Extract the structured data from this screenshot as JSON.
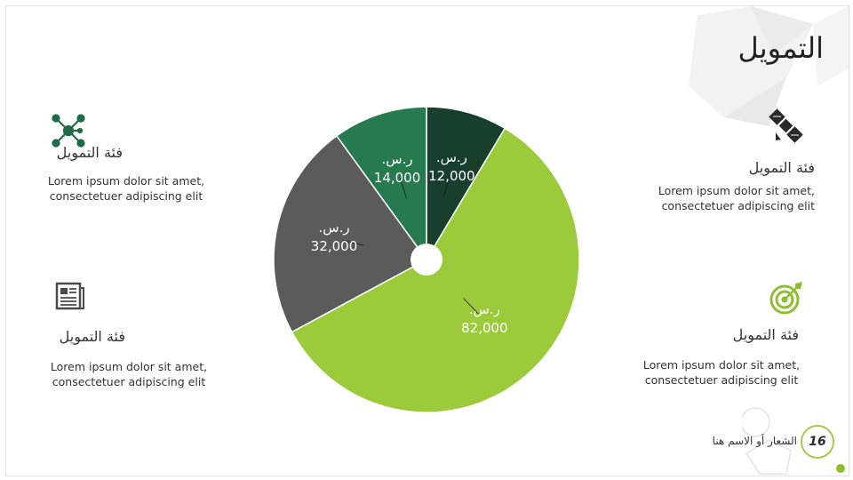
{
  "slide": {
    "title": "التمويل",
    "colors": {
      "dark_green": "#183f2b",
      "mid_green": "#27794f",
      "gray": "#5b5b5b",
      "light_green": "#9bcb3b",
      "light_gray_deco": "#f0f0f0",
      "accent_ring": "#a8c94e"
    },
    "blocks": {
      "top_left": {
        "icon": "network-icon",
        "heading": "فئة التمويل",
        "body_line1": "Lorem ipsum dolor sit amet,",
        "body_line2": "consectetuer adipiscing elit"
      },
      "top_right": {
        "icon": "satellite-icon",
        "heading": "فئة التمويل",
        "body_line1": "Lorem ipsum dolor sit amet,",
        "body_line2": "consectetuer adipiscing elit"
      },
      "bottom_left": {
        "icon": "newspaper-icon",
        "heading": "فئة التمويل",
        "body_line1": "Lorem ipsum dolor sit amet,",
        "body_line2": "consectetuer adipiscing elit"
      },
      "bottom_right": {
        "icon": "target-icon",
        "heading": "فئة التمويل",
        "body_line1": "Lorem ipsum dolor sit amet,",
        "body_line2": "consectetuer adipiscing elit"
      }
    },
    "footer": {
      "text": "الشعار أو الاسم هنا",
      "page_number": "16"
    }
  },
  "chart_data": {
    "type": "pie",
    "style": "donut-small-hole",
    "title": "",
    "currency_label": "ر.س.",
    "slices": [
      {
        "label": "12,000",
        "value": 12000,
        "color": "#183f2b"
      },
      {
        "label": "82,000",
        "value": 82000,
        "color": "#9bcb3b"
      },
      {
        "label": "32,000",
        "value": 32000,
        "color": "#5b5b5b"
      },
      {
        "label": "14,000",
        "value": 14000,
        "color": "#27794f"
      }
    ]
  }
}
